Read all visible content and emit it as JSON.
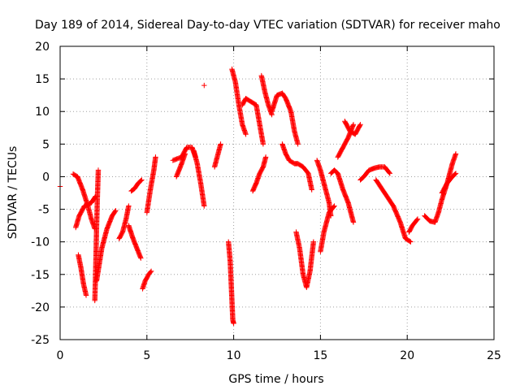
{
  "chart_data": {
    "type": "scatter",
    "marker": "plus",
    "title": "Day 189 of 2014, Sidereal Day-to-day VTEC variation (SDTVAR) for receiver maho",
    "xlabel": "GPS time / hours",
    "ylabel": "SDTVAR / TECUs",
    "xlim": [
      0,
      25
    ],
    "ylim": [
      -25,
      20
    ],
    "xticks": [
      0,
      5,
      10,
      15,
      20,
      25
    ],
    "yticks": [
      -25,
      -20,
      -15,
      -10,
      -5,
      0,
      5,
      10,
      15,
      20
    ],
    "grid": true,
    "series": [
      {
        "name": "SDTVAR",
        "color": "#ff0000",
        "tracks": [
          [
            [
              0.0,
              -1.5
            ]
          ],
          [
            [
              0.75,
              0.4
            ],
            [
              1.0,
              0.0
            ],
            [
              1.3,
              -2.0
            ],
            [
              1.6,
              -4.5
            ],
            [
              1.8,
              -6.5
            ],
            [
              2.0,
              -8.0
            ]
          ],
          [
            [
              0.9,
              -7.8
            ],
            [
              1.1,
              -6.0
            ],
            [
              1.4,
              -4.5
            ],
            [
              1.8,
              -4.0
            ],
            [
              2.05,
              -3.0
            ]
          ],
          [
            [
              1.05,
              -12.0
            ],
            [
              1.2,
              -14.0
            ],
            [
              1.35,
              -16.5
            ],
            [
              1.5,
              -18.2
            ]
          ],
          [
            [
              2.0,
              -19.0
            ],
            [
              2.05,
              -14.0
            ],
            [
              2.1,
              -8.0
            ],
            [
              2.15,
              -3.0
            ],
            [
              2.2,
              1.0
            ]
          ],
          [
            [
              2.1,
              -16.0
            ],
            [
              2.4,
              -11.0
            ],
            [
              2.7,
              -8.0
            ],
            [
              3.0,
              -6.0
            ],
            [
              3.2,
              -5.2
            ]
          ],
          [
            [
              3.4,
              -9.5
            ],
            [
              3.6,
              -8.5
            ],
            [
              3.8,
              -6.5
            ],
            [
              3.95,
              -4.5
            ]
          ],
          [
            [
              3.95,
              -7.5
            ],
            [
              4.2,
              -9.5
            ],
            [
              4.5,
              -11.5
            ],
            [
              4.65,
              -12.5
            ]
          ],
          [
            [
              4.1,
              -2.2
            ],
            [
              4.3,
              -1.8
            ],
            [
              4.5,
              -1.0
            ],
            [
              4.7,
              -0.5
            ]
          ],
          [
            [
              4.75,
              -17.2
            ],
            [
              4.9,
              -16.0
            ],
            [
              5.1,
              -15.0
            ],
            [
              5.25,
              -14.5
            ]
          ],
          [
            [
              5.0,
              -5.5
            ],
            [
              5.2,
              -2.0
            ],
            [
              5.4,
              1.0
            ],
            [
              5.5,
              3.0
            ]
          ],
          [
            [
              6.5,
              2.5
            ],
            [
              7.0,
              3.0
            ],
            [
              7.3,
              4.5
            ],
            [
              7.6,
              4.5
            ],
            [
              7.8,
              3.0
            ]
          ],
          [
            [
              6.7,
              0.0
            ],
            [
              7.0,
              2.0
            ],
            [
              7.2,
              3.5
            ]
          ],
          [
            [
              7.7,
              4.0
            ],
            [
              7.9,
              2.0
            ],
            [
              8.1,
              -1.0
            ],
            [
              8.3,
              -4.5
            ]
          ],
          [
            [
              8.3,
              14.0
            ]
          ],
          [
            [
              8.9,
              1.5
            ],
            [
              9.1,
              3.5
            ],
            [
              9.25,
              5.0
            ]
          ],
          [
            [
              9.7,
              -10.0
            ],
            [
              9.8,
              -13.0
            ],
            [
              9.85,
              -16.0
            ],
            [
              9.9,
              -19.0
            ],
            [
              9.95,
              -22.0
            ],
            [
              10.0,
              -22.5
            ]
          ],
          [
            [
              9.9,
              16.5
            ],
            [
              10.1,
              14.5
            ],
            [
              10.3,
              11.0
            ],
            [
              10.5,
              8.0
            ],
            [
              10.7,
              6.5
            ]
          ],
          [
            [
              10.5,
              11.0
            ],
            [
              10.7,
              12.0
            ],
            [
              11.0,
              11.5
            ],
            [
              11.3,
              11.0
            ],
            [
              11.5,
              8.0
            ],
            [
              11.7,
              5.0
            ]
          ],
          [
            [
              11.1,
              -2.2
            ],
            [
              11.3,
              -1.0
            ],
            [
              11.5,
              0.5
            ],
            [
              11.7,
              1.5
            ],
            [
              11.85,
              3.0
            ]
          ],
          [
            [
              11.6,
              15.5
            ],
            [
              11.8,
              13.0
            ],
            [
              12.0,
              11.0
            ],
            [
              12.2,
              9.5
            ]
          ],
          [
            [
              12.2,
              10.0
            ],
            [
              12.5,
              12.5
            ],
            [
              12.8,
              12.8
            ],
            [
              13.0,
              12.0
            ],
            [
              13.3,
              10.0
            ],
            [
              13.5,
              7.0
            ],
            [
              13.7,
              5.0
            ]
          ],
          [
            [
              12.8,
              5.0
            ],
            [
              13.0,
              3.5
            ],
            [
              13.2,
              2.5
            ],
            [
              13.5,
              2.0
            ],
            [
              13.7,
              2.0
            ],
            [
              14.0,
              1.5
            ],
            [
              14.3,
              0.5
            ],
            [
              14.5,
              -2.0
            ]
          ],
          [
            [
              13.6,
              -8.5
            ],
            [
              13.8,
              -11.0
            ],
            [
              14.0,
              -15.0
            ],
            [
              14.2,
              -17.0
            ],
            [
              14.4,
              -14.5
            ],
            [
              14.6,
              -10.0
            ]
          ],
          [
            [
              14.8,
              2.5
            ],
            [
              15.0,
              1.0
            ],
            [
              15.3,
              -2.0
            ],
            [
              15.5,
              -4.0
            ],
            [
              15.6,
              -6.0
            ]
          ],
          [
            [
              15.0,
              -11.5
            ],
            [
              15.2,
              -8.5
            ],
            [
              15.5,
              -5.5
            ],
            [
              15.8,
              -4.5
            ]
          ],
          [
            [
              15.6,
              0.5
            ],
            [
              15.8,
              1.0
            ],
            [
              16.0,
              0.5
            ],
            [
              16.3,
              -2.0
            ],
            [
              16.6,
              -4.0
            ],
            [
              16.9,
              -7.0
            ]
          ],
          [
            [
              16.0,
              3.0
            ],
            [
              16.3,
              4.5
            ],
            [
              16.6,
              6.0
            ],
            [
              16.9,
              8.0
            ]
          ],
          [
            [
              16.4,
              8.5
            ],
            [
              16.7,
              7.0
            ],
            [
              17.0,
              6.5
            ],
            [
              17.3,
              8.0
            ]
          ],
          [
            [
              17.3,
              -0.5
            ],
            [
              17.5,
              0.0
            ],
            [
              17.8,
              1.0
            ],
            [
              18.1,
              1.3
            ],
            [
              18.4,
              1.5
            ],
            [
              18.7,
              1.5
            ],
            [
              19.0,
              0.5
            ]
          ],
          [
            [
              18.2,
              -0.5
            ],
            [
              18.7,
              -2.5
            ],
            [
              19.2,
              -4.5
            ],
            [
              19.6,
              -7.0
            ],
            [
              19.9,
              -9.5
            ],
            [
              20.2,
              -10.0
            ]
          ],
          [
            [
              20.1,
              -8.5
            ],
            [
              20.3,
              -7.5
            ],
            [
              20.6,
              -6.5
            ]
          ],
          [
            [
              21.0,
              -6.0
            ],
            [
              21.3,
              -6.8
            ],
            [
              21.6,
              -7.0
            ],
            [
              21.8,
              -5.5
            ],
            [
              22.0,
              -3.5
            ],
            [
              22.3,
              -1.0
            ],
            [
              22.6,
              2.0
            ],
            [
              22.8,
              3.5
            ]
          ],
          [
            [
              22.0,
              -2.5
            ],
            [
              22.3,
              -1.0
            ],
            [
              22.6,
              0.0
            ],
            [
              22.8,
              0.5
            ]
          ]
        ]
      }
    ]
  }
}
